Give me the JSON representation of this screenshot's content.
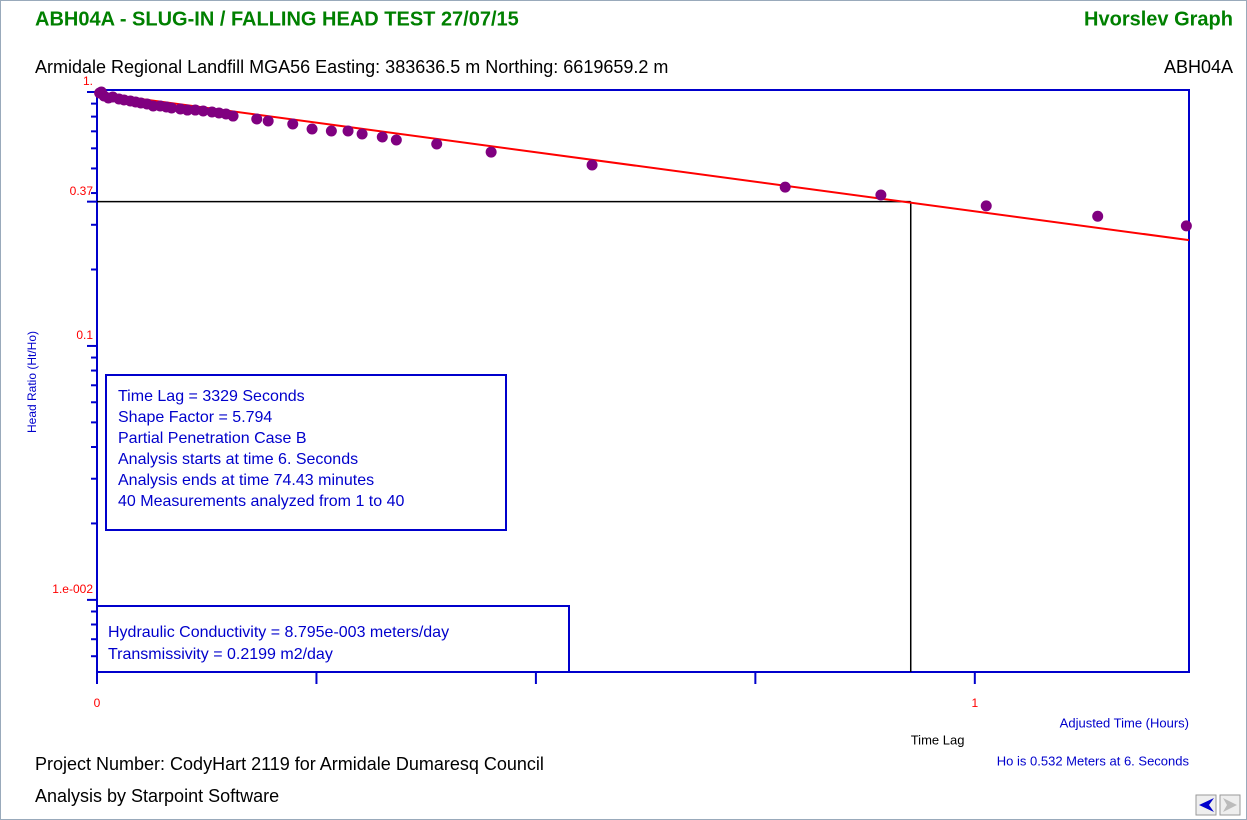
{
  "chart_data": {
    "type": "scatter",
    "title": "ABH04A - SLUG-IN / FALLING HEAD TEST 27/07/15",
    "title_right": "Hvorslev Graph",
    "subtitle": "Armidale Regional Landfill MGA56 Easting: 383636.5 m Northing: 6619659.2 m",
    "subtitle_right": "ABH04A",
    "y_label": "Head Ratio (Ht/Ho)",
    "x_label": "Adjusted Time (Hours)",
    "time_lag_label": "Time Lag",
    "ho_note": "Ho is 0.532 Meters at 6. Seconds",
    "footer": [
      "Project Number: CodyHart 2119 for Armidale Dumaresq Council",
      "Analysis by Starpoint Software"
    ],
    "info_box": [
      "Time Lag = 3329 Seconds",
      "Shape Factor = 5.794",
      "Partial Penetration Case B",
      "Analysis starts at time 6. Seconds",
      "Analysis ends at time 74.43 minutes",
      "40 Measurements analyzed from 1 to 40"
    ],
    "results_box": [
      "Hydraulic Conductivity = 8.795e-003 meters/day",
      "Transmissivity = 0.2199 m2/day"
    ],
    "log_y": true,
    "xlim": [
      0,
      1.244
    ],
    "ylim": [
      0.0052,
      1
    ],
    "xticks": [
      0,
      {
        "value": 0.25,
        "label": null
      },
      {
        "value": 0.5,
        "label": null
      },
      {
        "value": 0.75,
        "label": null
      },
      1
    ],
    "yticks": [
      {
        "value": 1,
        "label": "1."
      },
      0.37,
      0.1,
      {
        "value": 0.01,
        "label": "1.e-002"
      }
    ],
    "yminor": [
      0.9,
      0.8,
      0.7,
      0.6,
      0.5,
      0.4,
      0.3,
      0.2,
      0.09,
      0.08,
      0.07,
      0.06,
      0.05,
      0.04,
      0.03,
      0.02,
      0.009,
      0.008,
      0.007,
      0.006
    ],
    "series": [
      {
        "name": "Measurements",
        "color": "#800080",
        "x": [
          0.003,
          0.005,
          0.008,
          0.013,
          0.018,
          0.025,
          0.031,
          0.038,
          0.044,
          0.05,
          0.057,
          0.064,
          0.072,
          0.079,
          0.085,
          0.095,
          0.103,
          0.112,
          0.121,
          0.131,
          0.139,
          0.147,
          0.155,
          0.182,
          0.195,
          0.223,
          0.245,
          0.267,
          0.286,
          0.302,
          0.325,
          0.341,
          0.387,
          0.449,
          0.564,
          0.784,
          0.893,
          1.013,
          1.14,
          1.241
        ],
        "values": [
          0.991,
          1,
          0.964,
          0.947,
          0.956,
          0.939,
          0.93,
          0.922,
          0.913,
          0.905,
          0.897,
          0.881,
          0.881,
          0.873,
          0.865,
          0.857,
          0.849,
          0.849,
          0.842,
          0.834,
          0.827,
          0.819,
          0.804,
          0.783,
          0.769,
          0.748,
          0.715,
          0.702,
          0.702,
          0.683,
          0.665,
          0.647,
          0.624,
          0.58,
          0.516,
          0.422,
          0.393,
          0.356,
          0.324,
          0.297
        ]
      }
    ],
    "fit": {
      "color": "#ff0000",
      "x": [
        0,
        1.244
      ],
      "values": [
        0.99,
        0.261
      ]
    },
    "time_lag_x": 0.927,
    "time_lag_ratio": 0.37
  }
}
